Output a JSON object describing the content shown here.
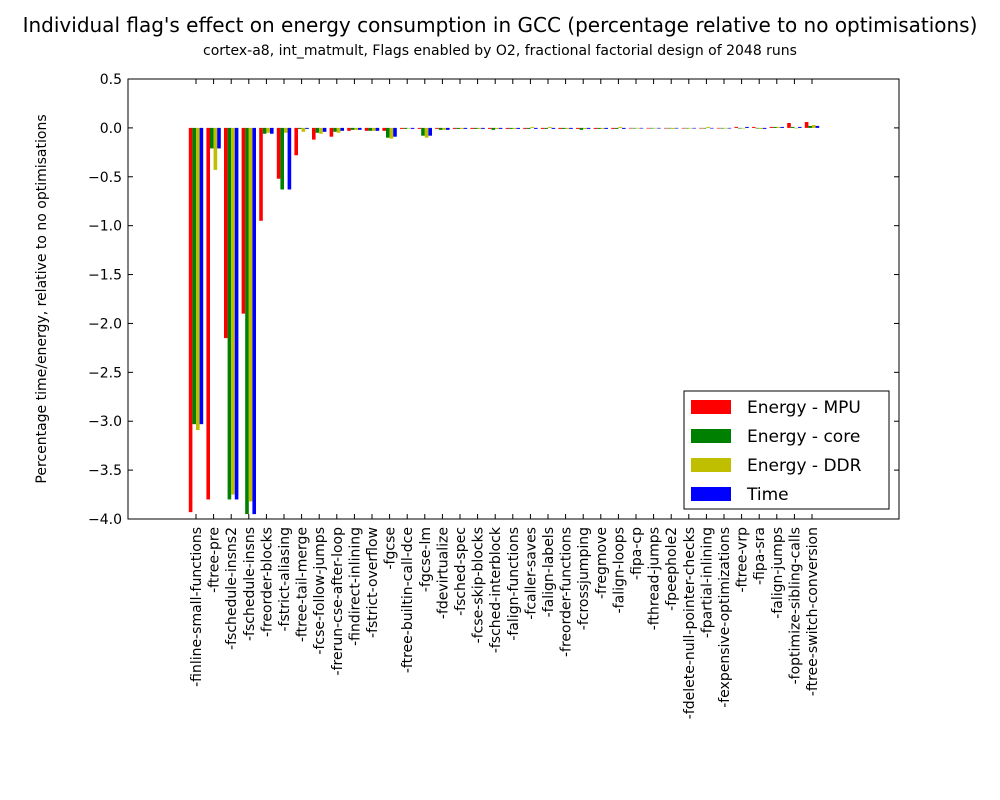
{
  "chart_data": {
    "type": "bar",
    "title": "Individual flag's effect on energy consumption in GCC (percentage relative to no optimisations)",
    "subtitle": "cortex-a8, int_matmult, Flags enabled by O2, fractional factorial design of 2048 runs",
    "xlabel": "",
    "ylabel": "Percentage time/energy, relative to no optimisations",
    "ylim": [
      -4.0,
      0.5
    ],
    "yticks": [
      "-4.0",
      "-3.5",
      "-3.0",
      "-2.5",
      "-2.0",
      "-1.5",
      "-1.0",
      "-0.5",
      "0.0",
      "0.5"
    ],
    "grid": false,
    "legend_position": "lower-right",
    "categories": [
      "-finline-small-functions",
      "-ftree-pre",
      "-fschedule-insns2",
      "-fschedule-insns",
      "-freorder-blocks",
      "-fstrict-aliasing",
      "-ftree-tail-merge",
      "-fcse-follow-jumps",
      "-frerun-cse-after-loop",
      "-findirect-inlining",
      "-fstrict-overflow",
      "-fgcse",
      "-ftree-builtin-call-dce",
      "-fgcse-lm",
      "-fdevirtualize",
      "-fsched-spec",
      "-fcse-skip-blocks",
      "-fsched-interblock",
      "-falign-functions",
      "-fcaller-saves",
      "-falign-labels",
      "-freorder-functions",
      "-fcrossjumping",
      "-fregmove",
      "-falign-loops",
      "-fipa-cp",
      "-fthread-jumps",
      "-fpeephole2",
      "-fdelete-null-pointer-checks",
      "-fpartial-inlining",
      "-fexpensive-optimizations",
      "-ftree-vrp",
      "-fipa-sra",
      "-falign-jumps",
      "-foptimize-sibling-calls",
      "-ftree-switch-conversion"
    ],
    "series": [
      {
        "name": "Energy - MPU",
        "color": "#ff0000",
        "values": [
          -3.93,
          -3.8,
          -2.15,
          -1.9,
          -0.95,
          -0.52,
          -0.28,
          -0.12,
          -0.09,
          -0.03,
          -0.03,
          -0.03,
          -0.01,
          -0.01,
          -0.01,
          -0.01,
          -0.01,
          -0.01,
          -0.01,
          -0.01,
          -0.01,
          -0.01,
          -0.01,
          -0.01,
          -0.01,
          0.0,
          0.0,
          0.0,
          0.0,
          0.0,
          0.0,
          0.01,
          0.01,
          0.01,
          0.05,
          0.06
        ]
      },
      {
        "name": "Energy - core",
        "color": "#008000",
        "values": [
          -3.03,
          -0.21,
          -3.8,
          -3.95,
          -0.06,
          -0.63,
          -0.01,
          -0.05,
          -0.04,
          -0.02,
          -0.03,
          -0.1,
          -0.01,
          -0.08,
          -0.02,
          -0.01,
          -0.01,
          -0.02,
          -0.01,
          -0.01,
          -0.01,
          -0.01,
          -0.02,
          -0.01,
          -0.01,
          0.0,
          0.0,
          0.0,
          0.0,
          0.0,
          0.0,
          0.0,
          0.0,
          0.01,
          0.01,
          0.02
        ]
      },
      {
        "name": "Energy - DDR",
        "color": "#bfbf00",
        "values": [
          -3.09,
          -0.43,
          -3.75,
          -3.82,
          -0.05,
          -0.05,
          -0.04,
          -0.06,
          -0.05,
          -0.02,
          -0.03,
          -0.11,
          0.0,
          -0.1,
          -0.02,
          -0.01,
          -0.01,
          -0.01,
          -0.01,
          0.01,
          0.01,
          -0.01,
          -0.01,
          -0.01,
          0.01,
          0.0,
          0.0,
          -0.01,
          0.0,
          0.01,
          0.0,
          0.0,
          -0.01,
          0.01,
          0.0,
          0.03
        ]
      },
      {
        "name": "Time",
        "color": "#0000ff",
        "values": [
          -3.03,
          -0.21,
          -3.8,
          -3.95,
          -0.06,
          -0.63,
          -0.01,
          -0.04,
          -0.03,
          -0.02,
          -0.03,
          -0.09,
          -0.01,
          -0.08,
          -0.02,
          -0.01,
          -0.01,
          -0.01,
          -0.01,
          -0.01,
          -0.01,
          -0.01,
          -0.01,
          -0.01,
          -0.01,
          0.0,
          0.0,
          0.0,
          0.0,
          0.0,
          0.0,
          0.01,
          -0.01,
          0.01,
          0.01,
          0.02
        ]
      }
    ]
  }
}
